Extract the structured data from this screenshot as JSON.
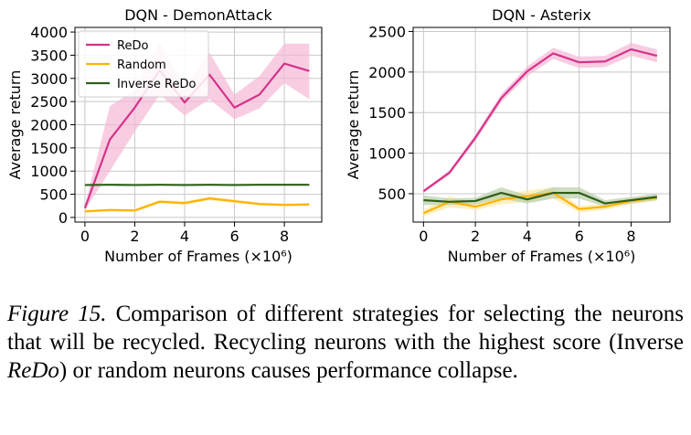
{
  "chart_data": [
    {
      "type": "line",
      "title": "DQN - DemonAttack",
      "xlabel": "Number of Frames (×10⁶)",
      "ylabel": "Average return",
      "xlim": [
        -0.4,
        9.5
      ],
      "ylim": [
        -100,
        4100
      ],
      "xticks": [
        0,
        2,
        4,
        6,
        8
      ],
      "yticks": [
        0,
        500,
        1000,
        1500,
        2000,
        2500,
        3000,
        3500,
        4000
      ],
      "grid": true,
      "legend": "top-left",
      "series": [
        {
          "name": "ReDo",
          "color": "#d6338a",
          "band_color": "#f5b8d6",
          "x": [
            0,
            1,
            2,
            3,
            4,
            5,
            6,
            7,
            8,
            9
          ],
          "y": [
            200,
            1680,
            2370,
            3180,
            2480,
            3080,
            2370,
            2650,
            3320,
            3160
          ],
          "lower": [
            150,
            1000,
            1850,
            2650,
            2200,
            2550,
            2120,
            2350,
            2900,
            2550
          ],
          "upper": [
            260,
            2400,
            2750,
            3750,
            2800,
            3550,
            2650,
            3050,
            3750,
            3750
          ]
        },
        {
          "name": "Random",
          "color": "#ffb300",
          "band_color": "#ffe8a6",
          "x": [
            0,
            1,
            2,
            3,
            4,
            5,
            6,
            7,
            8,
            9
          ],
          "y": [
            130,
            160,
            150,
            340,
            310,
            410,
            350,
            290,
            270,
            280
          ],
          "lower": [
            100,
            130,
            120,
            300,
            270,
            370,
            310,
            260,
            240,
            250
          ],
          "upper": [
            160,
            190,
            180,
            380,
            350,
            450,
            390,
            320,
            300,
            310
          ]
        },
        {
          "name": "Inverse ReDo",
          "color": "#2e5e1a",
          "band_color": "#b9cfa9",
          "x": [
            0,
            1,
            2,
            3,
            4,
            5,
            6,
            7,
            8,
            9
          ],
          "y": [
            700,
            705,
            700,
            705,
            700,
            705,
            700,
            705,
            705,
            705
          ],
          "lower": [
            685,
            690,
            685,
            690,
            685,
            690,
            685,
            690,
            690,
            690
          ],
          "upper": [
            715,
            720,
            715,
            720,
            715,
            720,
            715,
            720,
            720,
            720
          ]
        }
      ]
    },
    {
      "type": "line",
      "title": "DQN - Asterix",
      "xlabel": "Number of Frames (×10⁶)",
      "ylabel": "Average return",
      "xlim": [
        -0.4,
        9.5
      ],
      "ylim": [
        150,
        2550
      ],
      "xticks": [
        0,
        2,
        4,
        6,
        8
      ],
      "yticks": [
        500,
        1000,
        1500,
        2000,
        2500
      ],
      "grid": true,
      "series": [
        {
          "name": "ReDo",
          "color": "#d6338a",
          "band_color": "#f5b8d6",
          "x": [
            0,
            1,
            2,
            3,
            4,
            5,
            6,
            7,
            8,
            9
          ],
          "y": [
            530,
            760,
            1190,
            1680,
            2010,
            2230,
            2120,
            2130,
            2280,
            2200
          ],
          "lower": [
            510,
            730,
            1150,
            1630,
            1950,
            2160,
            2050,
            2060,
            2200,
            2120
          ],
          "upper": [
            550,
            790,
            1230,
            1730,
            2070,
            2300,
            2190,
            2200,
            2360,
            2280
          ]
        },
        {
          "name": "Random",
          "color": "#ffb300",
          "band_color": "#ffe8a6",
          "x": [
            0,
            1,
            2,
            3,
            4,
            5,
            6,
            7,
            8,
            9
          ],
          "y": [
            260,
            400,
            340,
            430,
            470,
            510,
            310,
            340,
            410,
            450
          ],
          "lower": [
            220,
            330,
            300,
            370,
            400,
            440,
            270,
            300,
            370,
            410
          ],
          "upper": [
            300,
            470,
            380,
            490,
            540,
            580,
            350,
            380,
            450,
            490
          ]
        },
        {
          "name": "Inverse ReDo",
          "color": "#2e5e1a",
          "band_color": "#b9cfa9",
          "x": [
            0,
            1,
            2,
            3,
            4,
            5,
            6,
            7,
            8,
            9
          ],
          "y": [
            420,
            400,
            410,
            510,
            430,
            510,
            510,
            380,
            420,
            460
          ],
          "lower": [
            360,
            360,
            370,
            440,
            380,
            440,
            440,
            340,
            380,
            420
          ],
          "upper": [
            480,
            440,
            450,
            580,
            480,
            580,
            580,
            420,
            460,
            500
          ]
        }
      ]
    }
  ],
  "caption": {
    "label": "Figure 15.",
    "text_before": " Comparison of different strategies for selecting the neurons that will be recycled. Recycling neurons with the highest score (Inverse ",
    "emphasis": "ReDo",
    "text_after": ") or random neurons causes performance collapse."
  }
}
